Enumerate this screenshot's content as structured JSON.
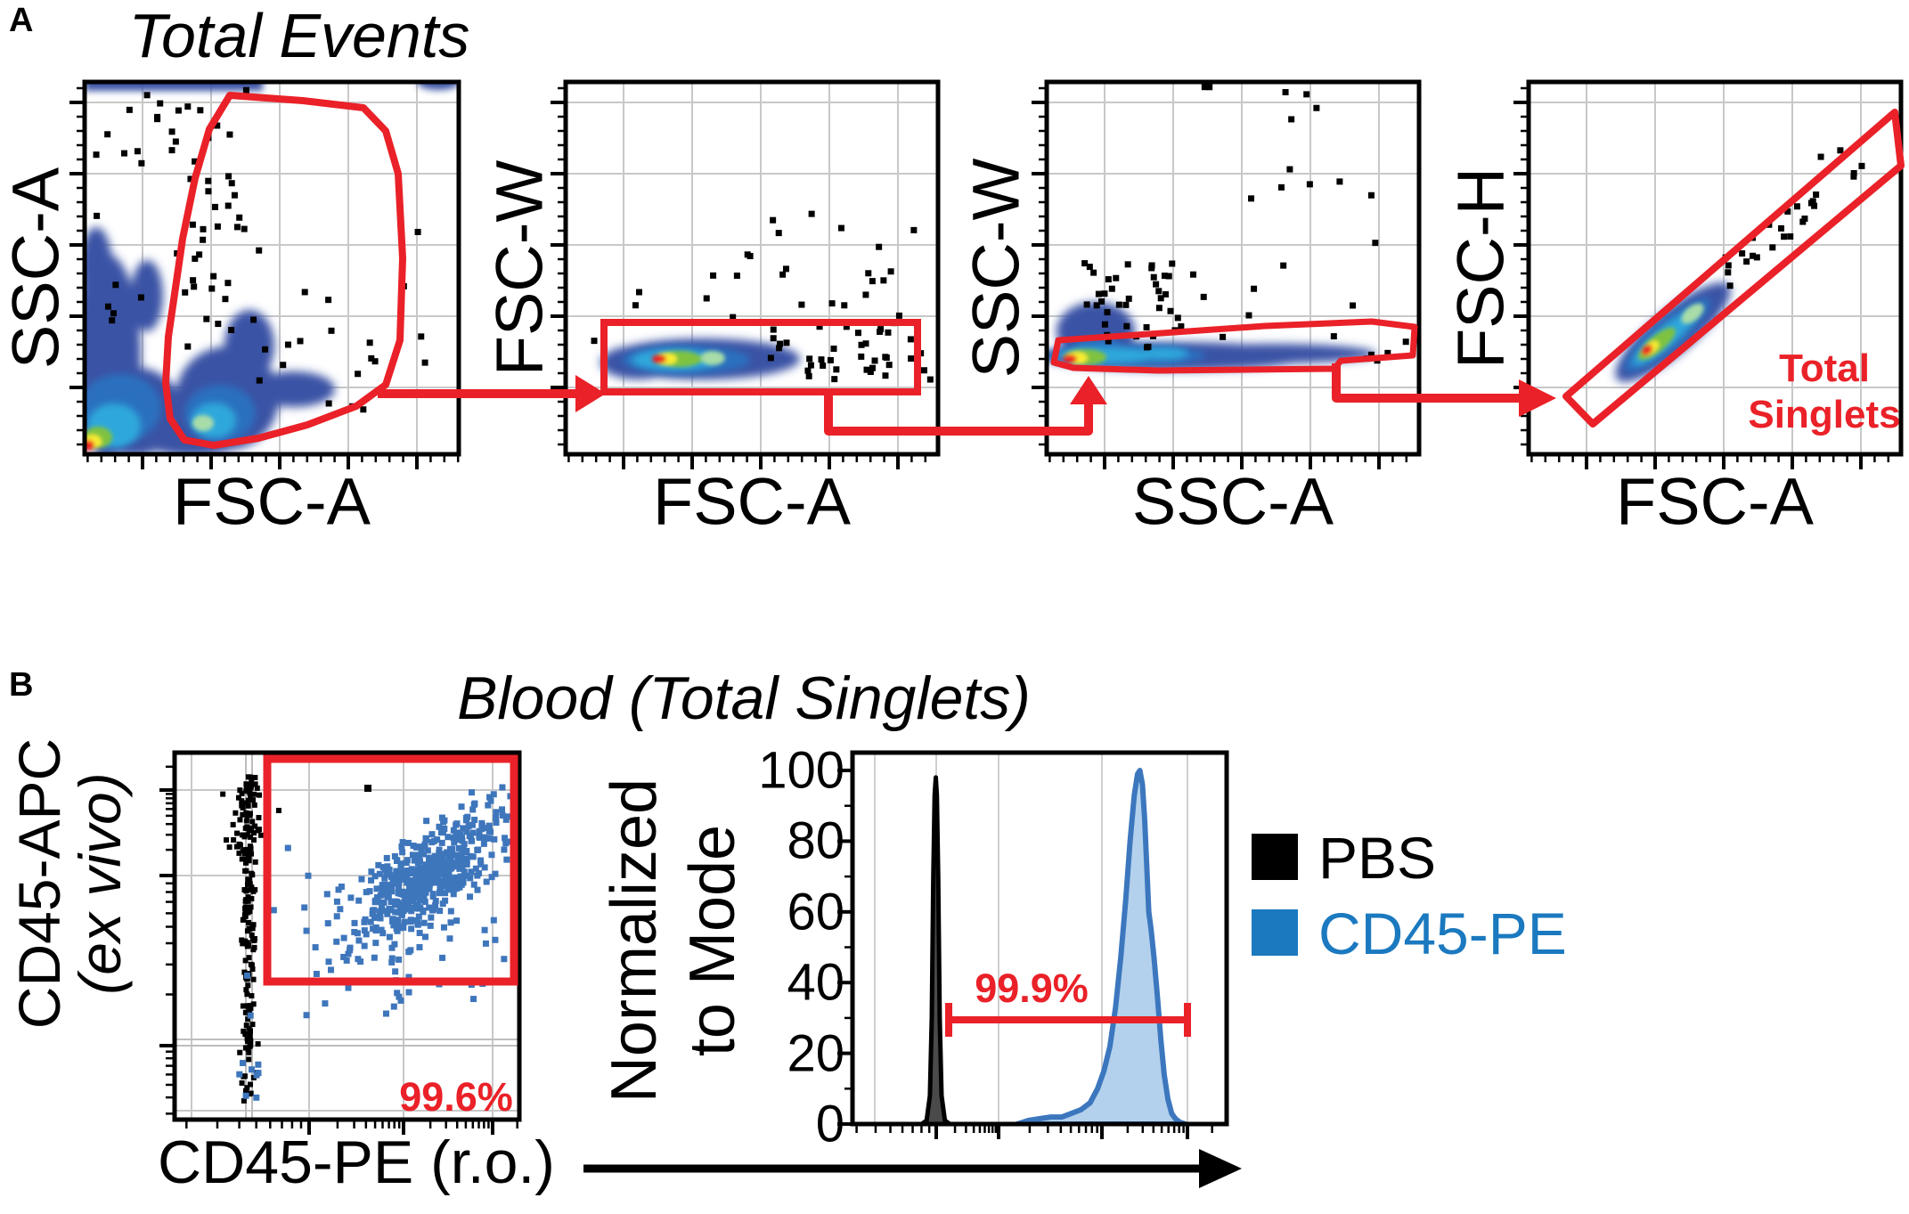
{
  "colors": {
    "gate_red": "#EA2128",
    "scatter_blue": "#3E76BC",
    "legend_blue": "#1B79BF",
    "hist_fill": "#B3D1EC",
    "hist_stroke": "#3C77BE",
    "density_outer": "#3B52A5",
    "density_mid": "#2C6FBE",
    "density_cyan": "#2FA8DC",
    "grid": "#C8C8C8"
  },
  "panel_a": {
    "letter": "A",
    "title": "Total Events",
    "plots": [
      {
        "ylabel": "SSC-A",
        "xlabel": "FSC-A"
      },
      {
        "ylabel": "FSC-W",
        "xlabel": "FSC-A"
      },
      {
        "ylabel": "SSC-W",
        "xlabel": "SSC-A"
      },
      {
        "ylabel": "FSC-H",
        "xlabel": "FSC-A",
        "gate_label_line1": "Total",
        "gate_label_line2": "Singlets"
      }
    ]
  },
  "panel_b": {
    "letter": "B",
    "title": "Blood (Total Singlets)",
    "scatter": {
      "ylabel_line1": "CD45-APC",
      "ylabel_line2": "(ex vivo)",
      "xlabel": "CD45-PE (r.o.)",
      "gate_percent": "99.6%"
    },
    "histogram": {
      "ylabel_line1": "Normalized",
      "ylabel_line2": "to Mode",
      "bracket_percent": "99.9%"
    },
    "legend": [
      {
        "label": "PBS",
        "color": "#000000"
      },
      {
        "label": "CD45-PE",
        "color": "#1B79BF"
      }
    ]
  },
  "chart_data": [
    {
      "panel": "A",
      "plot": 1,
      "type": "density",
      "title": "Total Events",
      "xlabel": "FSC-A",
      "ylabel": "SSC-A",
      "gate": {
        "shape": "freeform-polygon",
        "color": "red"
      }
    },
    {
      "panel": "A",
      "plot": 2,
      "type": "density",
      "xlabel": "FSC-A",
      "ylabel": "FSC-W",
      "gate": {
        "shape": "rectangle",
        "color": "red"
      }
    },
    {
      "panel": "A",
      "plot": 3,
      "type": "density",
      "xlabel": "SSC-A",
      "ylabel": "SSC-W",
      "gate": {
        "shape": "elongated-polygon",
        "color": "red"
      }
    },
    {
      "panel": "A",
      "plot": 4,
      "type": "density",
      "xlabel": "FSC-A",
      "ylabel": "FSC-H",
      "gate": {
        "shape": "diagonal-band",
        "color": "red",
        "label": "Total Singlets"
      }
    },
    {
      "panel": "B",
      "plot": 1,
      "type": "scatter",
      "title": "Blood (Total Singlets)",
      "xlabel": "CD45-PE (r.o.)",
      "ylabel": "CD45-APC (ex vivo)",
      "gate": {
        "shape": "rectangle",
        "color": "red",
        "percent": "99.6%"
      },
      "series": [
        {
          "name": "PBS",
          "color": "#000000",
          "position": "negative vertical cluster"
        },
        {
          "name": "CD45-PE",
          "color": "#3E76BC",
          "position": "double-positive diagonal cluster inside gate"
        }
      ]
    },
    {
      "panel": "B",
      "plot": 2,
      "type": "histogram",
      "ylabel": "Normalized to Mode",
      "ylim": [
        0,
        100
      ],
      "yticks": [
        "0",
        "20",
        "40",
        "60",
        "80",
        "100"
      ],
      "bracket": {
        "percent": "99.9%",
        "x1_frac": 0.257,
        "x2_frac": 0.895,
        "y_value": 29.5
      },
      "series": [
        {
          "name": "PBS",
          "color": "#000000",
          "points": [
            [
              0.185,
              0
            ],
            [
              0.198,
              1
            ],
            [
              0.207,
              8
            ],
            [
              0.212,
              30
            ],
            [
              0.216,
              70
            ],
            [
              0.2195,
              93
            ],
            [
              0.2225,
              98
            ],
            [
              0.2255,
              93
            ],
            [
              0.229,
              70
            ],
            [
              0.233,
              30
            ],
            [
              0.238,
              8
            ],
            [
              0.247,
              1
            ],
            [
              0.26,
              0
            ]
          ]
        },
        {
          "name": "CD45-PE",
          "color": "#3C77BE",
          "fill": "#B3D1EC",
          "points": [
            [
              0.44,
              0
            ],
            [
              0.47,
              1
            ],
            [
              0.5,
              1.5
            ],
            [
              0.53,
              2
            ],
            [
              0.56,
              2
            ],
            [
              0.585,
              3
            ],
            [
              0.61,
              4
            ],
            [
              0.635,
              6
            ],
            [
              0.655,
              10
            ],
            [
              0.672,
              15
            ],
            [
              0.688,
              22
            ],
            [
              0.703,
              33
            ],
            [
              0.717,
              47
            ],
            [
              0.73,
              63
            ],
            [
              0.742,
              80
            ],
            [
              0.753,
              93
            ],
            [
              0.762,
              99
            ],
            [
              0.768,
              100
            ],
            [
              0.775,
              96
            ],
            [
              0.781,
              86
            ],
            [
              0.787,
              72
            ],
            [
              0.792,
              60
            ],
            [
              0.798,
              55
            ],
            [
              0.806,
              47
            ],
            [
              0.815,
              36
            ],
            [
              0.824,
              24
            ],
            [
              0.833,
              14
            ],
            [
              0.843,
              7
            ],
            [
              0.853,
              3
            ],
            [
              0.863,
              1.5
            ],
            [
              0.875,
              0.5
            ],
            [
              0.89,
              0
            ]
          ]
        }
      ]
    }
  ]
}
